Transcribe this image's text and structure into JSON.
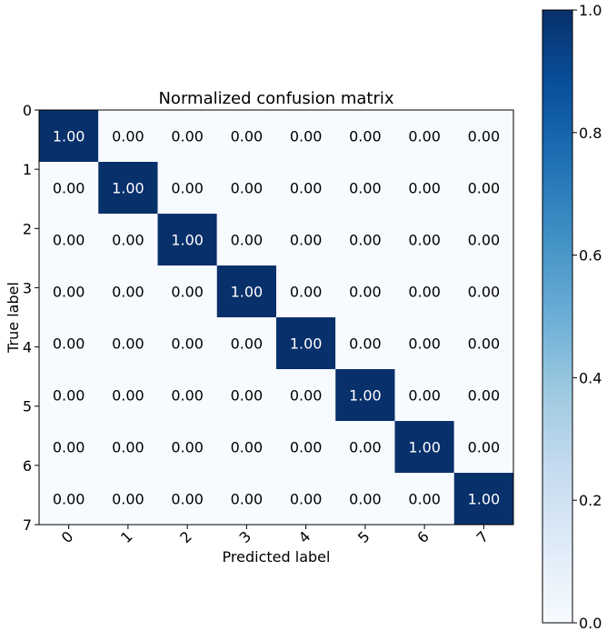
{
  "chart_data": {
    "type": "heatmap",
    "title": "Normalized confusion matrix",
    "xlabel": "Predicted label",
    "ylabel": "True label",
    "x_categories": [
      "0",
      "1",
      "2",
      "3",
      "4",
      "5",
      "6",
      "7"
    ],
    "y_categories": [
      "0",
      "1",
      "2",
      "3",
      "4",
      "5",
      "6",
      "7"
    ],
    "matrix": [
      [
        1.0,
        0.0,
        0.0,
        0.0,
        0.0,
        0.0,
        0.0,
        0.0
      ],
      [
        0.0,
        1.0,
        0.0,
        0.0,
        0.0,
        0.0,
        0.0,
        0.0
      ],
      [
        0.0,
        0.0,
        1.0,
        0.0,
        0.0,
        0.0,
        0.0,
        0.0
      ],
      [
        0.0,
        0.0,
        0.0,
        1.0,
        0.0,
        0.0,
        0.0,
        0.0
      ],
      [
        0.0,
        0.0,
        0.0,
        0.0,
        1.0,
        0.0,
        0.0,
        0.0
      ],
      [
        0.0,
        0.0,
        0.0,
        0.0,
        0.0,
        1.0,
        0.0,
        0.0
      ],
      [
        0.0,
        0.0,
        0.0,
        0.0,
        0.0,
        0.0,
        1.0,
        0.0
      ],
      [
        0.0,
        0.0,
        0.0,
        0.0,
        0.0,
        0.0,
        0.0,
        1.0
      ]
    ],
    "value_format": "0.00",
    "colorbar": {
      "colormap": "Blues",
      "color_low": "#f7fbff",
      "color_high": "#08306b",
      "range": [
        0.0,
        1.0
      ],
      "ticks": [
        "0.0",
        "0.2",
        "0.4",
        "0.6",
        "0.8",
        "1.0"
      ],
      "placement": "right"
    },
    "x_tick_rotation_deg": 45,
    "text_color_dark": "#000000",
    "text_color_light": "#ffffff",
    "grid": false
  }
}
